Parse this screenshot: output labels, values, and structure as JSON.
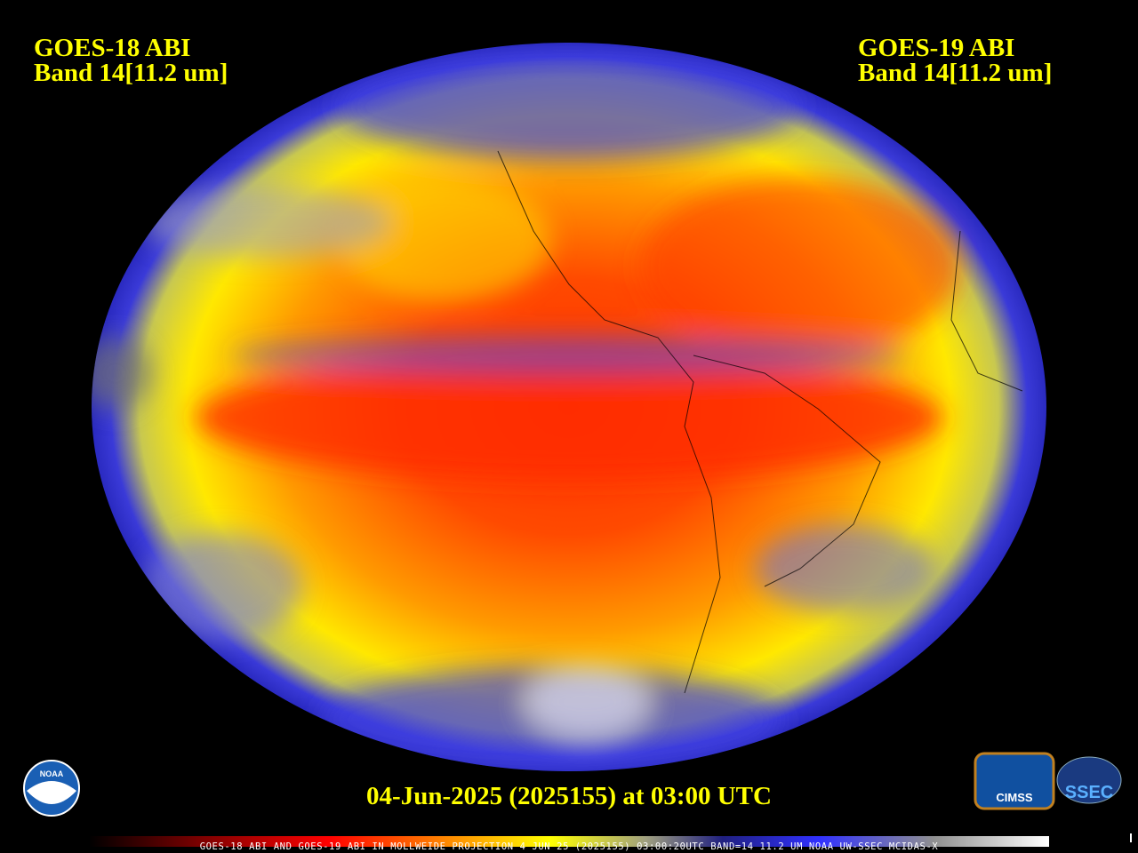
{
  "header": {
    "left": {
      "title": "GOES-18 ABI",
      "band": "Band 14[11.2 um]"
    },
    "right": {
      "title": "GOES-19 ABI",
      "band": "Band 14[11.2 um]"
    }
  },
  "timestamp": "04-Jun-2025 (2025155) at 03:00 UTC",
  "footer": "GOES-18 ABI AND GOES-19 ABI IN MOLLWEIDE PROJECTION 4 JUN 25 (2025155) 03:00:20UTC BAND=14 11.2 UM NOAA UW-SSEC MCIDAS-X",
  "logos": {
    "noaa": "NOAA",
    "cimss": "CIMSS",
    "ssec": "SSEC"
  }
}
